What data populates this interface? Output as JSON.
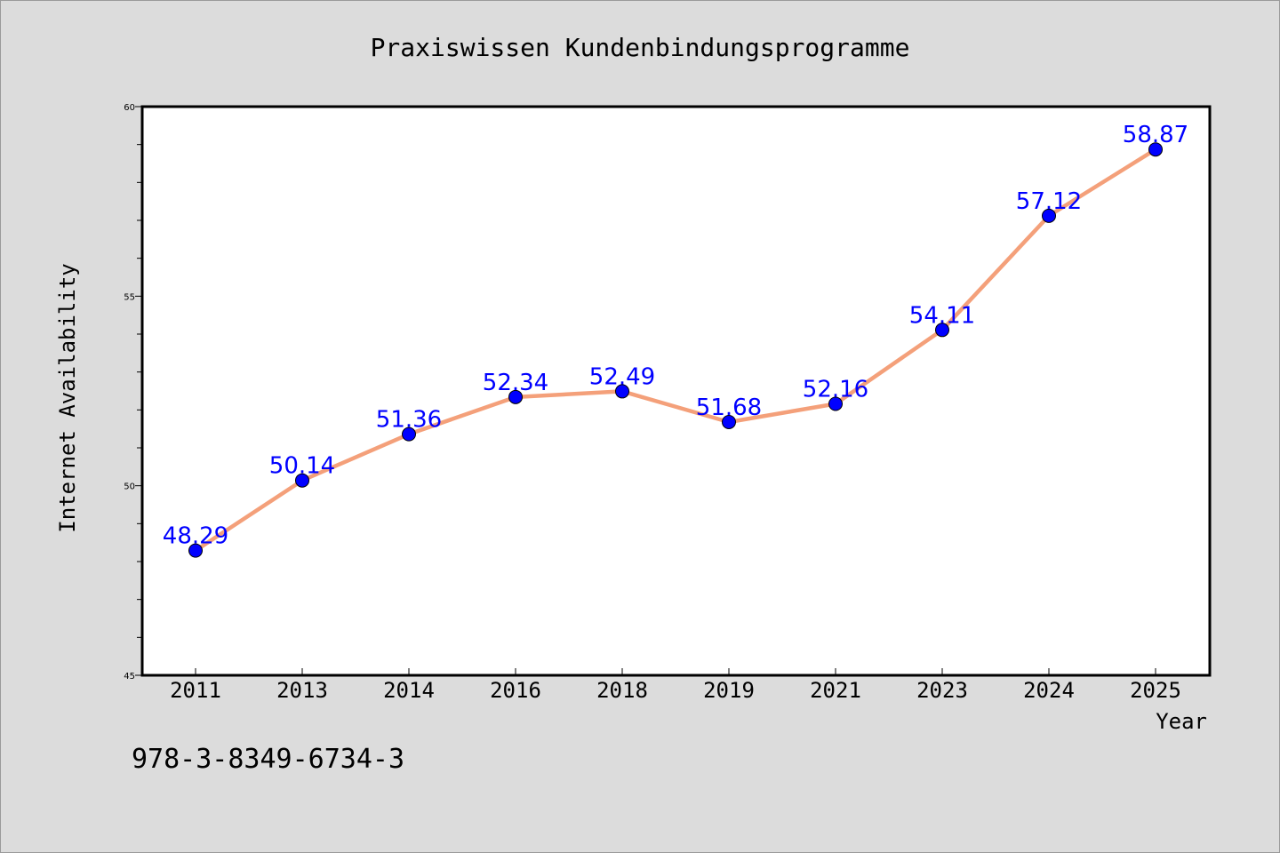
{
  "colors": {
    "background": "#dcdcdc",
    "plot_background": "#ffffff",
    "line": "#f4a07a",
    "marker": "#0000ff",
    "label": "#0000ff"
  },
  "footer_code": "978-3-8349-6734-3",
  "chart_data": {
    "type": "line",
    "title": "Praxiswissen Kundenbindungsprogramme",
    "xlabel": "Year",
    "ylabel": "Internet Availability",
    "categories": [
      "2011",
      "2013",
      "2014",
      "2016",
      "2018",
      "2019",
      "2021",
      "2023",
      "2024",
      "2025"
    ],
    "series": [
      {
        "values": [
          48.29,
          50.14,
          51.36,
          52.34,
          52.49,
          51.68,
          52.16,
          54.11,
          57.12,
          58.87
        ],
        "labels": [
          "48.29",
          "50.14",
          "51.36",
          "52.34",
          "52.49",
          "51.68",
          "52.16",
          "54.11",
          "57.12",
          "58.87"
        ]
      }
    ],
    "ylim": [
      45,
      60
    ],
    "yticks": [
      45,
      50,
      55,
      60
    ],
    "ytick_labels": [
      "45",
      "50",
      "55",
      "60"
    ],
    "grid": false,
    "legend": "none"
  }
}
